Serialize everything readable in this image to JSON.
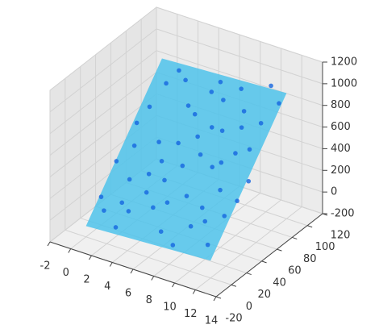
{
  "chart_data": {
    "type": "scatter3d",
    "x": [
      1,
      2,
      3,
      4,
      5,
      6,
      7,
      8,
      9,
      10,
      11,
      12,
      0.5,
      1.5,
      2.5,
      3.5,
      4.5,
      5.5,
      6.5,
      7.5,
      8.5,
      9.5,
      10.5,
      11.5,
      0,
      1,
      2,
      3,
      4,
      5,
      6,
      7,
      8,
      9,
      10,
      11,
      12,
      1,
      3,
      5,
      7,
      9,
      11,
      2,
      4,
      6,
      8,
      10,
      12,
      0,
      6,
      9
    ],
    "y": [
      10,
      30,
      55,
      80,
      20,
      45,
      70,
      95,
      15,
      40,
      65,
      90,
      60,
      85,
      5,
      35,
      60,
      90,
      10,
      30,
      50,
      75,
      100,
      25,
      40,
      70,
      95,
      15,
      45,
      75,
      25,
      55,
      5,
      85,
      60,
      10,
      50,
      50,
      90,
      35,
      85,
      30,
      80,
      20,
      25,
      65,
      70,
      20,
      35,
      20,
      95,
      55
    ],
    "z": [
      20,
      230,
      470,
      700,
      120,
      400,
      650,
      900,
      100,
      330,
      600,
      920,
      540,
      800,
      -60,
      300,
      480,
      820,
      0,
      250,
      440,
      700,
      980,
      220,
      280,
      650,
      880,
      50,
      380,
      680,
      170,
      480,
      -50,
      780,
      560,
      20,
      420,
      400,
      850,
      290,
      820,
      190,
      760,
      70,
      200,
      560,
      650,
      150,
      320,
      60,
      900,
      470
    ],
    "color": "#1565e0",
    "plane": {
      "x": [
        0,
        12
      ],
      "y": [
        0,
        100
      ],
      "z": [
        [
          -100,
          -40
        ],
        [
          900,
          960
        ]
      ],
      "color": "#4fc3eb"
    },
    "xlim": [
      -2,
      14
    ],
    "ylim": [
      -20,
      120
    ],
    "zlim": [
      -200,
      1200
    ],
    "xticks": [
      -2,
      0,
      2,
      4,
      6,
      8,
      10,
      12,
      14
    ],
    "yticks": [
      -20,
      0,
      20,
      40,
      60,
      80,
      100,
      120
    ],
    "zticks": [
      -200,
      0,
      200,
      400,
      600,
      800,
      1000,
      1200
    ],
    "grid": true
  }
}
